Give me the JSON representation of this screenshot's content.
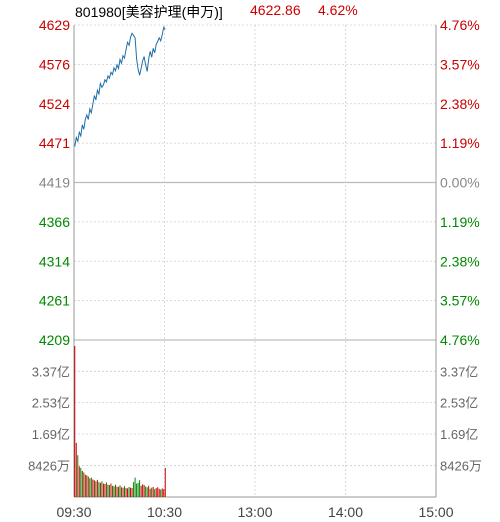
{
  "header": {
    "title": "801980[美容护理(申万)]",
    "price": "4622.86",
    "change": "4.62%"
  },
  "colors": {
    "up": "#cc0000",
    "down": "#008800",
    "neutral": "#888888",
    "line": "#1f6fa8",
    "grid": "#cfcfcf",
    "text": "#222222"
  },
  "chart_data": {
    "type": "line",
    "title": "801980[美容护理(申万)]",
    "price_axis": {
      "ticks_left": [
        "4629",
        "4576",
        "4524",
        "4471",
        "4419",
        "4366",
        "4314",
        "4261",
        "4209"
      ],
      "ticks_right": [
        "4.76%",
        "3.57%",
        "2.38%",
        "1.19%",
        "0.00%",
        "1.19%",
        "2.38%",
        "3.57%",
        "4.76%"
      ],
      "tick_sign": [
        "up",
        "up",
        "up",
        "up",
        "neutral",
        "down",
        "down",
        "down",
        "down"
      ],
      "ylim": [
        4209,
        4629
      ],
      "prev_close": 4419
    },
    "volume_axis": {
      "ticks_left": [
        "3.37亿",
        "2.53亿",
        "1.69亿",
        "8426万"
      ],
      "ticks_right": [
        "3.37亿",
        "2.53亿",
        "1.69亿",
        "8426万"
      ],
      "tick_values": [
        337000000,
        253000000,
        169000000,
        84260000
      ],
      "ylim": [
        0,
        421000000
      ]
    },
    "time_axis": {
      "labels": [
        "09:30",
        "10:30",
        "13:00",
        "14:00",
        "15:00"
      ],
      "sessions_minutes": 240
    },
    "price_series": [
      4467,
      4479,
      4474,
      4486,
      4481,
      4496,
      4490,
      4503,
      4509,
      4503,
      4517,
      4512,
      4524,
      4535,
      4529,
      4542,
      4537,
      4551,
      4546,
      4549,
      4556,
      4553,
      4561,
      4558,
      4566,
      4563,
      4572,
      4568,
      4576,
      4571,
      4583,
      4578,
      4588,
      4585,
      4596,
      4606,
      4602,
      4613,
      4618,
      4615,
      4612,
      4584,
      4570,
      4562,
      4571,
      4581,
      4587,
      4576,
      4567,
      4584,
      4594,
      4586,
      4598,
      4592,
      4603,
      4607,
      4612,
      4608,
      4616,
      4626,
      4623
    ],
    "volume_series": [
      405000000,
      145000000,
      112000000,
      82000000,
      78000000,
      70000000,
      66000000,
      60000000,
      58000000,
      55000000,
      50000000,
      52000000,
      47000000,
      45000000,
      42000000,
      46000000,
      40000000,
      38000000,
      42000000,
      36000000,
      35000000,
      39000000,
      33000000,
      32000000,
      36000000,
      30000000,
      29000000,
      33000000,
      28000000,
      27000000,
      31000000,
      26000000,
      25000000,
      29000000,
      24000000,
      23000000,
      27000000,
      25000000,
      24000000,
      40000000,
      52000000,
      36000000,
      38000000,
      45000000,
      30000000,
      34000000,
      32000000,
      28000000,
      26000000,
      30000000,
      22000000,
      25000000,
      27000000,
      21000000,
      24000000,
      26000000,
      22000000,
      20000000,
      23000000,
      21000000,
      78000000
    ],
    "volume_direction": [
      "up",
      "up",
      "down",
      "up",
      "down",
      "up",
      "down",
      "up",
      "up",
      "down",
      "up",
      "down",
      "up",
      "up",
      "down",
      "up",
      "down",
      "up",
      "down",
      "up",
      "up",
      "down",
      "up",
      "down",
      "up",
      "down",
      "up",
      "down",
      "up",
      "down",
      "up",
      "down",
      "up",
      "down",
      "up",
      "up",
      "down",
      "up",
      "up",
      "down",
      "down",
      "down",
      "down",
      "down",
      "up",
      "up",
      "up",
      "down",
      "down",
      "up",
      "up",
      "down",
      "up",
      "down",
      "up",
      "up",
      "up",
      "down",
      "up",
      "up",
      "up"
    ]
  }
}
